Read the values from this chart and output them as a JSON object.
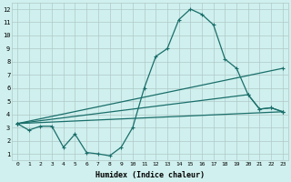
{
  "xlabel": "Humidex (Indice chaleur)",
  "bg_color": "#cff0ee",
  "grid_color": "#b0c8c8",
  "line_color": "#1a6e6a",
  "xlim": [
    -0.5,
    23.5
  ],
  "ylim": [
    0.5,
    12.5
  ],
  "xticks": [
    0,
    1,
    2,
    3,
    4,
    5,
    6,
    7,
    8,
    9,
    10,
    11,
    12,
    13,
    14,
    15,
    16,
    17,
    18,
    19,
    20,
    21,
    22,
    23
  ],
  "yticks": [
    1,
    2,
    3,
    4,
    5,
    6,
    7,
    8,
    9,
    10,
    11,
    12
  ],
  "series": [
    {
      "x": [
        0,
        1,
        2,
        3,
        4,
        5,
        6,
        7,
        8,
        9,
        10,
        11,
        12,
        13,
        14,
        15,
        16,
        17,
        18,
        19,
        20,
        21,
        22,
        23
      ],
      "y": [
        3.3,
        2.8,
        3.1,
        3.1,
        1.5,
        2.5,
        1.1,
        1.0,
        0.85,
        1.5,
        3.0,
        6.0,
        8.4,
        9.0,
        11.2,
        12.0,
        11.6,
        10.8,
        8.2,
        7.5,
        5.5,
        4.4,
        4.5,
        4.2
      ]
    },
    {
      "x": [
        0,
        23
      ],
      "y": [
        3.3,
        7.5
      ]
    },
    {
      "x": [
        0,
        20,
        21,
        22,
        23
      ],
      "y": [
        3.3,
        5.5,
        4.4,
        4.5,
        4.2
      ]
    },
    {
      "x": [
        0,
        23
      ],
      "y": [
        3.3,
        4.2
      ]
    }
  ]
}
